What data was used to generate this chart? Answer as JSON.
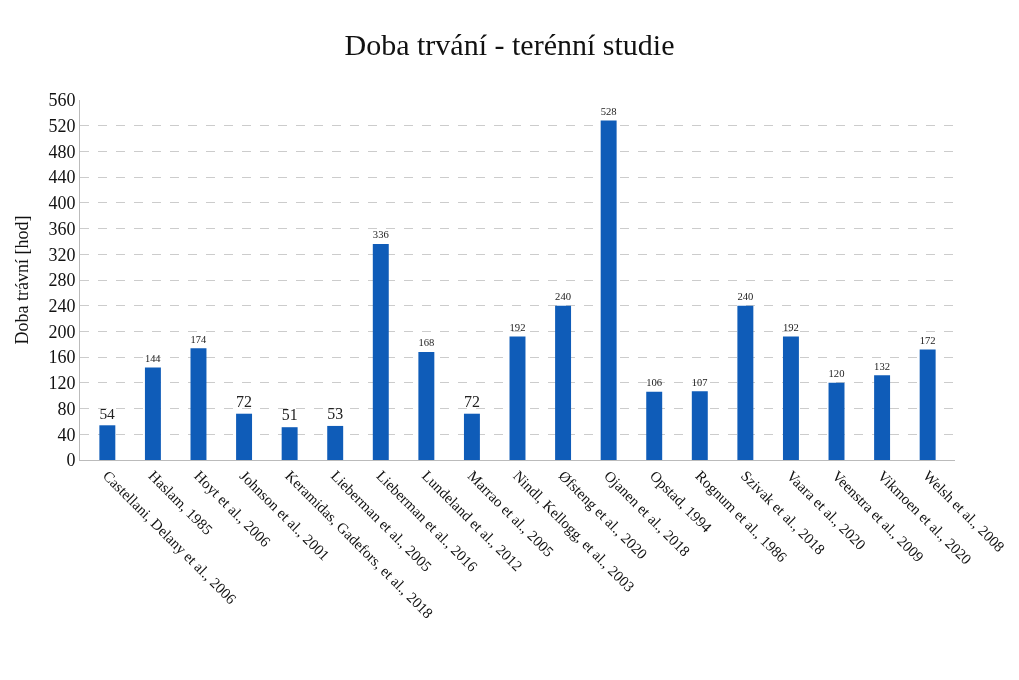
{
  "chart_data": {
    "type": "bar",
    "title": "Doba trvání - terénní studie",
    "ylabel": "Doba trávní [hod]",
    "categories": [
      "Castellani, Delany et al., 2006",
      "Haslam, 1985",
      "Hoyt et al., 2006",
      "Johnson et al., 2001",
      "Keramidas, Gadefors, et al., 2018",
      "Lieberman et al., 2005",
      "Lieberman et al., 2016",
      "Lundeland et al., 2012",
      "Marrao et al., 2005",
      "Nindl, Kellogg, et al., 2003",
      "Øfsteng et al., 2020",
      "Ojanen et al., 2018",
      "Opstad, 1994",
      "Rognum et al., 1986",
      "Szivak et al., 2018",
      "Vaara et al., 2020",
      "Veenstra et al., 2009",
      "Vikmoen et al., 2020",
      "Welsh et al., 2008"
    ],
    "values": [
      54,
      144,
      174,
      72,
      51,
      53,
      336,
      168,
      72,
      192,
      240,
      528,
      106,
      107,
      240,
      192,
      120,
      132,
      172
    ],
    "color": "#0f5cb8",
    "data_labels": true,
    "grid": "y",
    "legend": false,
    "ylim": [
      0,
      560
    ],
    "yticks": [
      0,
      40,
      80,
      120,
      160,
      200,
      240,
      280,
      320,
      360,
      400,
      440,
      480,
      520,
      560
    ]
  }
}
